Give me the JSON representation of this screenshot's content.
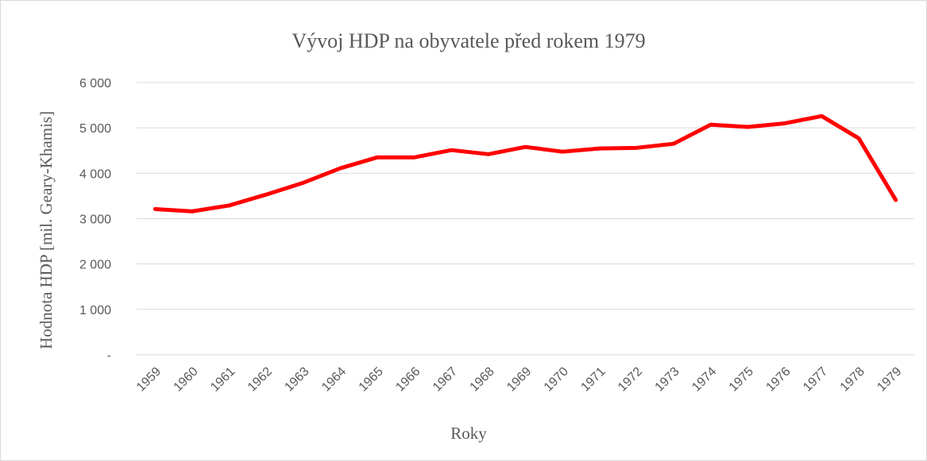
{
  "chart_data": {
    "type": "line",
    "title": "Vývoj HDP na obyvatele před rokem 1979",
    "x_label": "Roky",
    "y_label": "Hodnota HDP [mil. Geary-Khamis]",
    "categories": [
      "1959",
      "1960",
      "1961",
      "1962",
      "1963",
      "1964",
      "1965",
      "1966",
      "1967",
      "1968",
      "1969",
      "1970",
      "1971",
      "1972",
      "1973",
      "1974",
      "1975",
      "1976",
      "1977",
      "1978",
      "1979"
    ],
    "series": [
      {
        "name": "HDP",
        "color": "#ff0000",
        "values": [
          3210,
          3160,
          3290,
          3530,
          3790,
          4110,
          4350,
          4350,
          4510,
          4420,
          4580,
          4475,
          4545,
          4560,
          4650,
          5070,
          5020,
          5100,
          5260,
          4770,
          3410
        ]
      }
    ],
    "ylim": [
      0,
      6000
    ],
    "yticks": [
      {
        "value": 0,
        "label": "-"
      },
      {
        "value": 1000,
        "label": "1 000"
      },
      {
        "value": 2000,
        "label": "2 000"
      },
      {
        "value": 3000,
        "label": "3 000"
      },
      {
        "value": 4000,
        "label": "4 000"
      },
      {
        "value": 5000,
        "label": "5 000"
      },
      {
        "value": 6000,
        "label": "6 000"
      }
    ],
    "grid": true
  }
}
